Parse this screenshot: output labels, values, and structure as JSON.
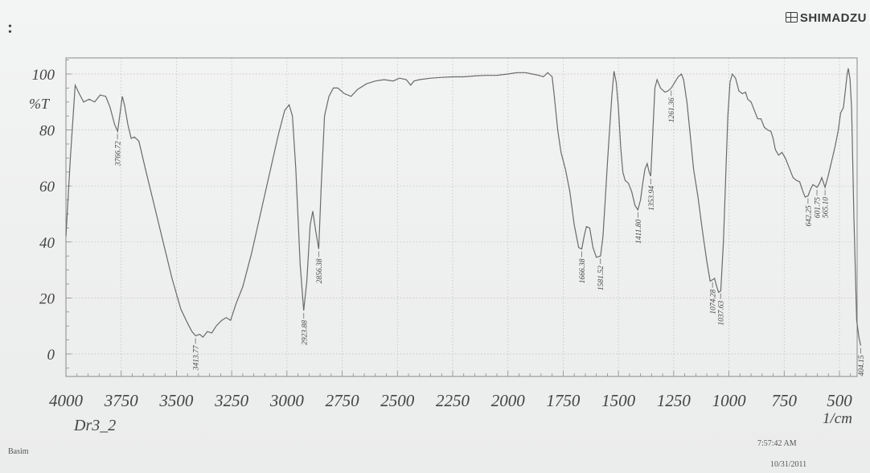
{
  "header": {
    "brand": "SHIMADZU",
    "mark": "•\n•"
  },
  "footer": {
    "sample": "Dr3_2",
    "operator": "Basim",
    "time": "7:57:42 AM",
    "date": "10/31/2011"
  },
  "colors": {
    "trace": "#6a6a6a",
    "grid": "#b9bcbc",
    "frame": "#8a8a8a",
    "text": "#444444"
  },
  "chart_data": {
    "type": "line",
    "title": "",
    "xlabel": "1/cm",
    "ylabel": "%T",
    "xlim": [
      4000,
      400
    ],
    "ylim": [
      -8,
      106
    ],
    "x_reversed": true,
    "grid": true,
    "x_ticks": [
      4000,
      3750,
      3500,
      3250,
      3000,
      2750,
      2500,
      2250,
      2000,
      1750,
      1500,
      1250,
      1000,
      750,
      500
    ],
    "y_ticks": [
      0,
      20,
      40,
      60,
      80,
      100
    ],
    "series": [
      {
        "points": [
          [
            4000,
            42
          ],
          [
            3980,
            70
          ],
          [
            3958,
            96
          ],
          [
            3940,
            93
          ],
          [
            3920,
            90
          ],
          [
            3895,
            91
          ],
          [
            3870,
            90
          ],
          [
            3845,
            92.5
          ],
          [
            3820,
            92
          ],
          [
            3800,
            88
          ],
          [
            3780,
            82
          ],
          [
            3766,
            79.5
          ],
          [
            3755,
            86
          ],
          [
            3745,
            92
          ],
          [
            3735,
            89
          ],
          [
            3720,
            82
          ],
          [
            3705,
            77
          ],
          [
            3690,
            77.5
          ],
          [
            3670,
            76
          ],
          [
            3640,
            66
          ],
          [
            3600,
            53
          ],
          [
            3560,
            40
          ],
          [
            3520,
            27
          ],
          [
            3480,
            16
          ],
          [
            3450,
            11
          ],
          [
            3430,
            8
          ],
          [
            3413,
            6.5
          ],
          [
            3395,
            7
          ],
          [
            3380,
            6
          ],
          [
            3360,
            8
          ],
          [
            3340,
            7.5
          ],
          [
            3320,
            10
          ],
          [
            3295,
            12
          ],
          [
            3275,
            13
          ],
          [
            3255,
            12
          ],
          [
            3230,
            18
          ],
          [
            3200,
            24
          ],
          [
            3160,
            36
          ],
          [
            3120,
            50
          ],
          [
            3080,
            64
          ],
          [
            3040,
            78
          ],
          [
            3010,
            87
          ],
          [
            2990,
            89
          ],
          [
            2975,
            85
          ],
          [
            2960,
            66
          ],
          [
            2940,
            32
          ],
          [
            2924,
            15.5
          ],
          [
            2910,
            26
          ],
          [
            2895,
            46
          ],
          [
            2883,
            51
          ],
          [
            2870,
            44
          ],
          [
            2856,
            37.5
          ],
          [
            2845,
            60
          ],
          [
            2830,
            85
          ],
          [
            2810,
            92
          ],
          [
            2790,
            95
          ],
          [
            2770,
            95
          ],
          [
            2740,
            93
          ],
          [
            2710,
            92
          ],
          [
            2680,
            94.5
          ],
          [
            2640,
            96.5
          ],
          [
            2600,
            97.5
          ],
          [
            2560,
            98
          ],
          [
            2520,
            97.5
          ],
          [
            2490,
            98.5
          ],
          [
            2460,
            98
          ],
          [
            2440,
            96
          ],
          [
            2425,
            97.5
          ],
          [
            2400,
            98
          ],
          [
            2350,
            98.5
          ],
          [
            2300,
            98.8
          ],
          [
            2250,
            99
          ],
          [
            2200,
            99
          ],
          [
            2150,
            99.3
          ],
          [
            2100,
            99.5
          ],
          [
            2050,
            99.5
          ],
          [
            2000,
            100
          ],
          [
            1960,
            100.5
          ],
          [
            1920,
            100.5
          ],
          [
            1890,
            100
          ],
          [
            1860,
            99.5
          ],
          [
            1840,
            99
          ],
          [
            1820,
            100.5
          ],
          [
            1800,
            99
          ],
          [
            1790,
            92
          ],
          [
            1775,
            80
          ],
          [
            1760,
            72
          ],
          [
            1740,
            66
          ],
          [
            1720,
            58
          ],
          [
            1700,
            46
          ],
          [
            1680,
            38
          ],
          [
            1666,
            37.5
          ],
          [
            1655,
            42
          ],
          [
            1645,
            45.5
          ],
          [
            1630,
            45
          ],
          [
            1615,
            38
          ],
          [
            1600,
            34.5
          ],
          [
            1581,
            35
          ],
          [
            1570,
            42
          ],
          [
            1560,
            55
          ],
          [
            1550,
            68
          ],
          [
            1540,
            80
          ],
          [
            1530,
            92
          ],
          [
            1520,
            101
          ],
          [
            1510,
            97
          ],
          [
            1500,
            88
          ],
          [
            1490,
            74
          ],
          [
            1480,
            65
          ],
          [
            1470,
            62
          ],
          [
            1455,
            61
          ],
          [
            1440,
            58
          ],
          [
            1425,
            53
          ],
          [
            1412,
            51.5
          ],
          [
            1400,
            55
          ],
          [
            1390,
            61
          ],
          [
            1380,
            66
          ],
          [
            1370,
            68
          ],
          [
            1361,
            65
          ],
          [
            1354,
            63.5
          ],
          [
            1345,
            78
          ],
          [
            1335,
            95
          ],
          [
            1325,
            98
          ],
          [
            1310,
            95
          ],
          [
            1290,
            93.5
          ],
          [
            1275,
            94
          ],
          [
            1261,
            95
          ],
          [
            1245,
            97
          ],
          [
            1230,
            99
          ],
          [
            1215,
            100
          ],
          [
            1205,
            98
          ],
          [
            1190,
            90
          ],
          [
            1175,
            78
          ],
          [
            1160,
            66
          ],
          [
            1140,
            56
          ],
          [
            1120,
            44
          ],
          [
            1100,
            33
          ],
          [
            1085,
            26
          ],
          [
            1074,
            26.5
          ],
          [
            1065,
            27
          ],
          [
            1057,
            24.5
          ],
          [
            1047,
            22
          ],
          [
            1037,
            22.5
          ],
          [
            1025,
            40
          ],
          [
            1015,
            62
          ],
          [
            1005,
            85
          ],
          [
            995,
            97
          ],
          [
            985,
            100
          ],
          [
            970,
            98.5
          ],
          [
            955,
            94
          ],
          [
            940,
            93
          ],
          [
            925,
            93.5
          ],
          [
            915,
            91
          ],
          [
            900,
            90
          ],
          [
            885,
            87
          ],
          [
            870,
            84
          ],
          [
            855,
            84
          ],
          [
            840,
            81
          ],
          [
            825,
            80
          ],
          [
            810,
            79.5
          ],
          [
            800,
            77
          ],
          [
            790,
            73
          ],
          [
            775,
            71
          ],
          [
            760,
            72
          ],
          [
            745,
            70
          ],
          [
            730,
            67
          ],
          [
            710,
            63
          ],
          [
            695,
            62
          ],
          [
            680,
            61.5
          ],
          [
            665,
            58
          ],
          [
            655,
            56
          ],
          [
            642,
            56.5
          ],
          [
            630,
            59
          ],
          [
            620,
            60.5
          ],
          [
            610,
            60
          ],
          [
            601,
            59.5
          ],
          [
            590,
            61
          ],
          [
            580,
            63
          ],
          [
            565,
            59.5
          ],
          [
            550,
            64
          ],
          [
            535,
            69
          ],
          [
            520,
            74
          ],
          [
            505,
            80
          ],
          [
            495,
            86
          ],
          [
            482,
            88
          ],
          [
            472,
            95
          ],
          [
            465,
            100
          ],
          [
            460,
            102
          ],
          [
            452,
            98
          ],
          [
            445,
            88
          ],
          [
            435,
            50
          ],
          [
            422,
            12
          ],
          [
            412,
            6
          ],
          [
            404,
            3
          ]
        ]
      }
    ],
    "peak_labels": [
      {
        "x": 3766.72,
        "y": 79.5,
        "label": "3766.72"
      },
      {
        "x": 3413.77,
        "y": 6.5,
        "label": "3413.77"
      },
      {
        "x": 2923.88,
        "y": 15.5,
        "label": "2923.88"
      },
      {
        "x": 2856.38,
        "y": 37.5,
        "label": "2856.38"
      },
      {
        "x": 1666.38,
        "y": 37.5,
        "label": "1666.38"
      },
      {
        "x": 1581.52,
        "y": 35,
        "label": "1581.52"
      },
      {
        "x": 1411.8,
        "y": 51.5,
        "label": "1411.80"
      },
      {
        "x": 1353.94,
        "y": 63.5,
        "label": "1353.94"
      },
      {
        "x": 1261.36,
        "y": 95,
        "label": "1261.36"
      },
      {
        "x": 1074.28,
        "y": 26.5,
        "label": "1074.28"
      },
      {
        "x": 1037.63,
        "y": 22.5,
        "label": "1037.63"
      },
      {
        "x": 642.25,
        "y": 56.5,
        "label": "642.25"
      },
      {
        "x": 601.75,
        "y": 59.5,
        "label": "601.75"
      },
      {
        "x": 565.1,
        "y": 59.5,
        "label": "565.10"
      },
      {
        "x": 404.15,
        "y": 3,
        "label": "404.15"
      }
    ]
  }
}
